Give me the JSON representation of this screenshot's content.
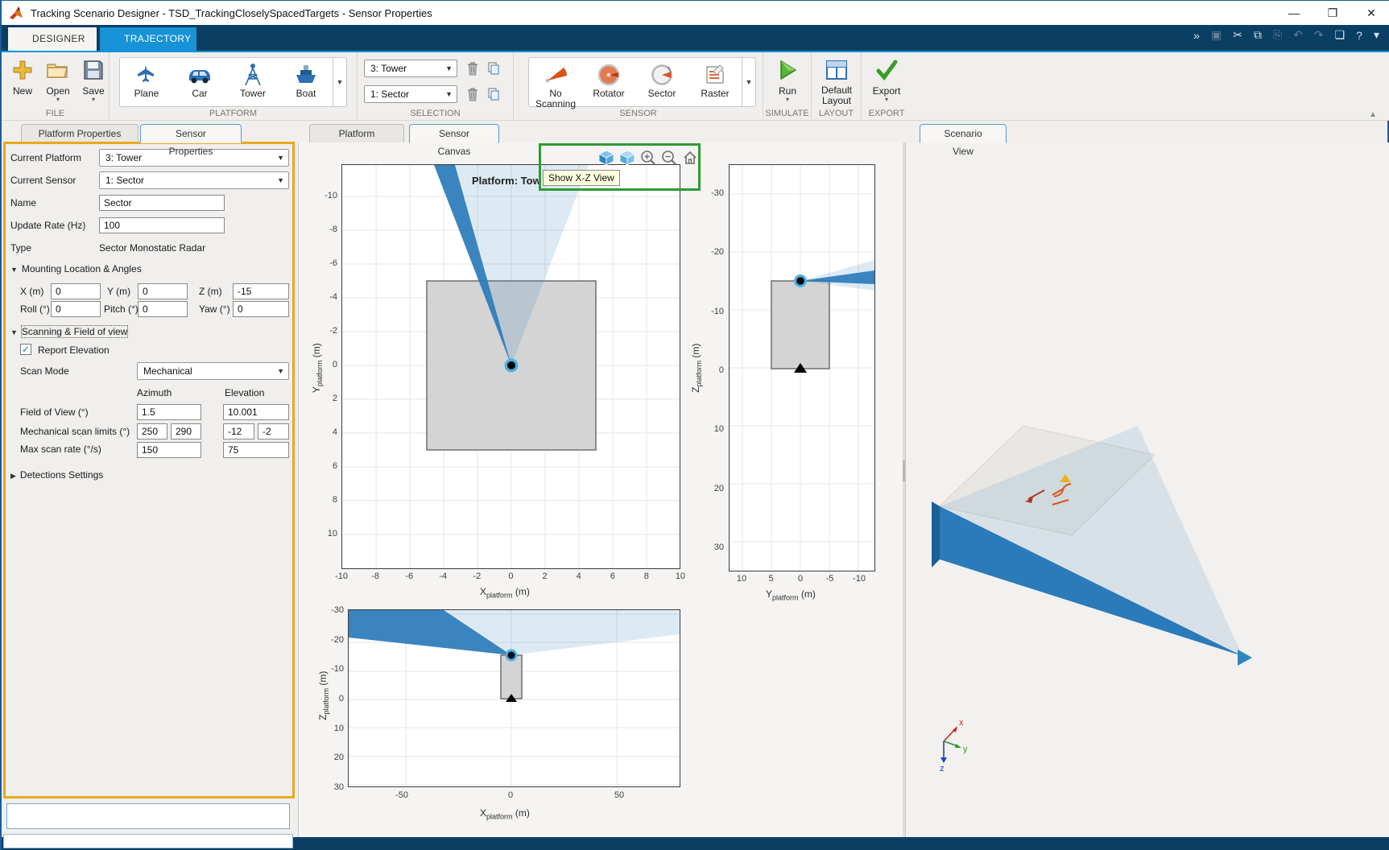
{
  "titlebar": {
    "title": "Tracking Scenario Designer - TSD_TrackingCloselySpacedTargets - Sensor Properties"
  },
  "window_controls": {
    "minimize": "—",
    "maximize": "❐",
    "close": "✕"
  },
  "ribbon_tabs": {
    "designer": "DESIGNER",
    "trajectory": "TRAJECTORY"
  },
  "quick_access": [
    {
      "name": "shortcuts-icon",
      "glyph": "»",
      "enabled": true
    },
    {
      "name": "save-icon",
      "glyph": "▣",
      "enabled": false
    },
    {
      "name": "cut-icon",
      "glyph": "✂",
      "enabled": true
    },
    {
      "name": "copy-icon",
      "glyph": "⧉",
      "enabled": true
    },
    {
      "name": "paste-icon",
      "glyph": "⎘",
      "enabled": false
    },
    {
      "name": "undo-icon",
      "glyph": "↶",
      "enabled": false
    },
    {
      "name": "redo-icon",
      "glyph": "↷",
      "enabled": false
    },
    {
      "name": "windows-icon",
      "glyph": "❏",
      "enabled": true
    },
    {
      "name": "help-icon",
      "glyph": "?",
      "enabled": true
    },
    {
      "name": "more-icon",
      "glyph": "▾",
      "enabled": true
    }
  ],
  "ribbon": {
    "file": {
      "label": "FILE",
      "new": "New",
      "open": "Open",
      "save": "Save"
    },
    "platform": {
      "label": "PLATFORM",
      "plane": "Plane",
      "car": "Car",
      "tower": "Tower",
      "boat": "Boat"
    },
    "selection": {
      "label": "SELECTION",
      "platform_value": "3: Tower",
      "sensor_value": "1: Sector"
    },
    "sensor": {
      "label": "SENSOR",
      "no_scanning": "No Scanning",
      "rotator": "Rotator",
      "sector": "Sector",
      "raster": "Raster"
    },
    "simulate": {
      "label": "SIMULATE",
      "run": "Run"
    },
    "layout": {
      "label": "LAYOUT",
      "default_layout": "Default Layout"
    },
    "export": {
      "label": "EXPORT",
      "export": "Export"
    }
  },
  "left": {
    "tab_platform": "Platform Properties",
    "tab_sensor": "Sensor Properties",
    "current_platform_label": "Current Platform",
    "current_platform": "3: Tower",
    "current_sensor_label": "Current Sensor",
    "current_sensor": "1: Sector",
    "name_label": "Name",
    "name": "Sector",
    "update_rate_label": "Update Rate (Hz)",
    "update_rate": "100",
    "type_label": "Type",
    "type": "Sector Monostatic Radar",
    "mounting_header": "Mounting Location & Angles",
    "x_label": "X (m)",
    "x": "0",
    "y_label": "Y (m)",
    "y": "0",
    "z_label": "Z (m)",
    "z": "-15",
    "roll_label": "Roll (°)",
    "roll": "0",
    "pitch_label": "Pitch (°)",
    "pitch": "0",
    "yaw_label": "Yaw (°)",
    "yaw": "0",
    "scanning_header": "Scanning & Field of view",
    "report_elevation": "Report Elevation",
    "scan_mode_label": "Scan Mode",
    "scan_mode": "Mechanical",
    "azimuth_header": "Azimuth",
    "elevation_header": "Elevation",
    "fov_label": "Field of View (°)",
    "fov_az": "1.5",
    "fov_el": "10.001",
    "limits_label": "Mechanical scan limits (°)",
    "limits_az_min": "250",
    "limits_az_max": "290",
    "limits_el_min": "-12",
    "limits_el_max": "-2",
    "rate_label": "Max scan rate (°/s)",
    "rate_az": "150",
    "rate_el": "75",
    "detections_header": "Detections Settings"
  },
  "center": {
    "tab_platform": "Platform Canvas",
    "tab_sensor": "Sensor Canvas",
    "plot_title": "Platform: Tow",
    "tooltip": "Show X-Z View"
  },
  "plots": {
    "main": {
      "xticks": [
        "-10",
        "-8",
        "-6",
        "-4",
        "-2",
        "0",
        "2",
        "4",
        "6",
        "8",
        "10"
      ],
      "yticks": [
        "-10",
        "-8",
        "-6",
        "-4",
        "-2",
        "0",
        "2",
        "4",
        "6",
        "8",
        "10"
      ],
      "xlabel": {
        "base": "X",
        "sub": "platform",
        "unit": " (m)"
      },
      "ylabel": {
        "base": "Y",
        "sub": "platform",
        "unit": " (m)"
      }
    },
    "side": {
      "xticks": [
        "10",
        "5",
        "0",
        "-5",
        "-10"
      ],
      "yticks": [
        "-30",
        "-20",
        "-10",
        "0",
        "10",
        "20",
        "30"
      ],
      "xlabel": {
        "base": "Y",
        "sub": "platform",
        "unit": " (m)"
      },
      "ylabel": {
        "base": "Z",
        "sub": "platform",
        "unit": " (m)"
      }
    },
    "bottom": {
      "xticks": [
        "-50",
        "0",
        "50"
      ],
      "yticks": [
        "-30",
        "-20",
        "-10",
        "0",
        "10",
        "20",
        "30"
      ],
      "xlabel": {
        "base": "X",
        "sub": "platform",
        "unit": " (m)"
      },
      "ylabel": {
        "base": "Z",
        "sub": "platform",
        "unit": " (m)"
      }
    }
  },
  "right": {
    "tab": "Scenario View",
    "triad_x": "x",
    "triad_y": "y",
    "triad_z": "z"
  },
  "colors": {
    "beam_blue": "#2b7bba",
    "fov_light_blue": "#d9e8f7",
    "platform_gray": "#d4d4d4",
    "annotation_green": "#2e9b33",
    "highlight_orange": "#e9a91d",
    "tooltip_yellow": "#ffffe1",
    "ribbon_navy": "#0b3e63",
    "trajectory_tab_blue": "#1792d6",
    "matlab_orange": "#d95319",
    "marker_yellow": "#edb120",
    "run_green": "#4caf2e"
  },
  "chart_data": [
    {
      "type": "scatter",
      "title": "Sensor Canvas X-Y view (top)",
      "xlabel": "X_platform (m)",
      "ylabel": "Y_platform (m)",
      "xlim": [
        -10,
        10
      ],
      "ylim_inverted": [
        -10,
        10
      ],
      "platform_footprint_m": {
        "x": [
          -5,
          5
        ],
        "y": [
          -5,
          5
        ]
      },
      "sensor_position_m": [
        0,
        0
      ],
      "beam_azimuth_deg": [
        250,
        290
      ],
      "beam_fov_az_deg": 1.5
    },
    {
      "type": "scatter",
      "title": "Sensor Canvas Y-Z view (right)",
      "xlabel": "Y_platform (m)",
      "ylabel": "Z_platform (m)",
      "xlim_reversed": [
        10,
        -10
      ],
      "ylim_inverted": [
        -30,
        30
      ],
      "tower_extent_m": {
        "y": [
          -5,
          5
        ],
        "z": [
          0,
          -15
        ]
      },
      "sensor_position_m": [
        0,
        -15
      ]
    },
    {
      "type": "scatter",
      "title": "Sensor Canvas X-Z view (bottom)",
      "xlabel": "X_platform (m)",
      "ylabel": "Z_platform (m)",
      "xlim": [
        -75,
        80
      ],
      "ylim_inverted": [
        -30,
        30
      ],
      "tower_extent_m": {
        "x": [
          -5,
          5
        ],
        "z": [
          0,
          -15
        ]
      },
      "sensor_position_m": [
        0,
        -15
      ],
      "beam_elevation_deg": [
        -12,
        -2
      ],
      "fov_el_deg": 10.001
    }
  ]
}
